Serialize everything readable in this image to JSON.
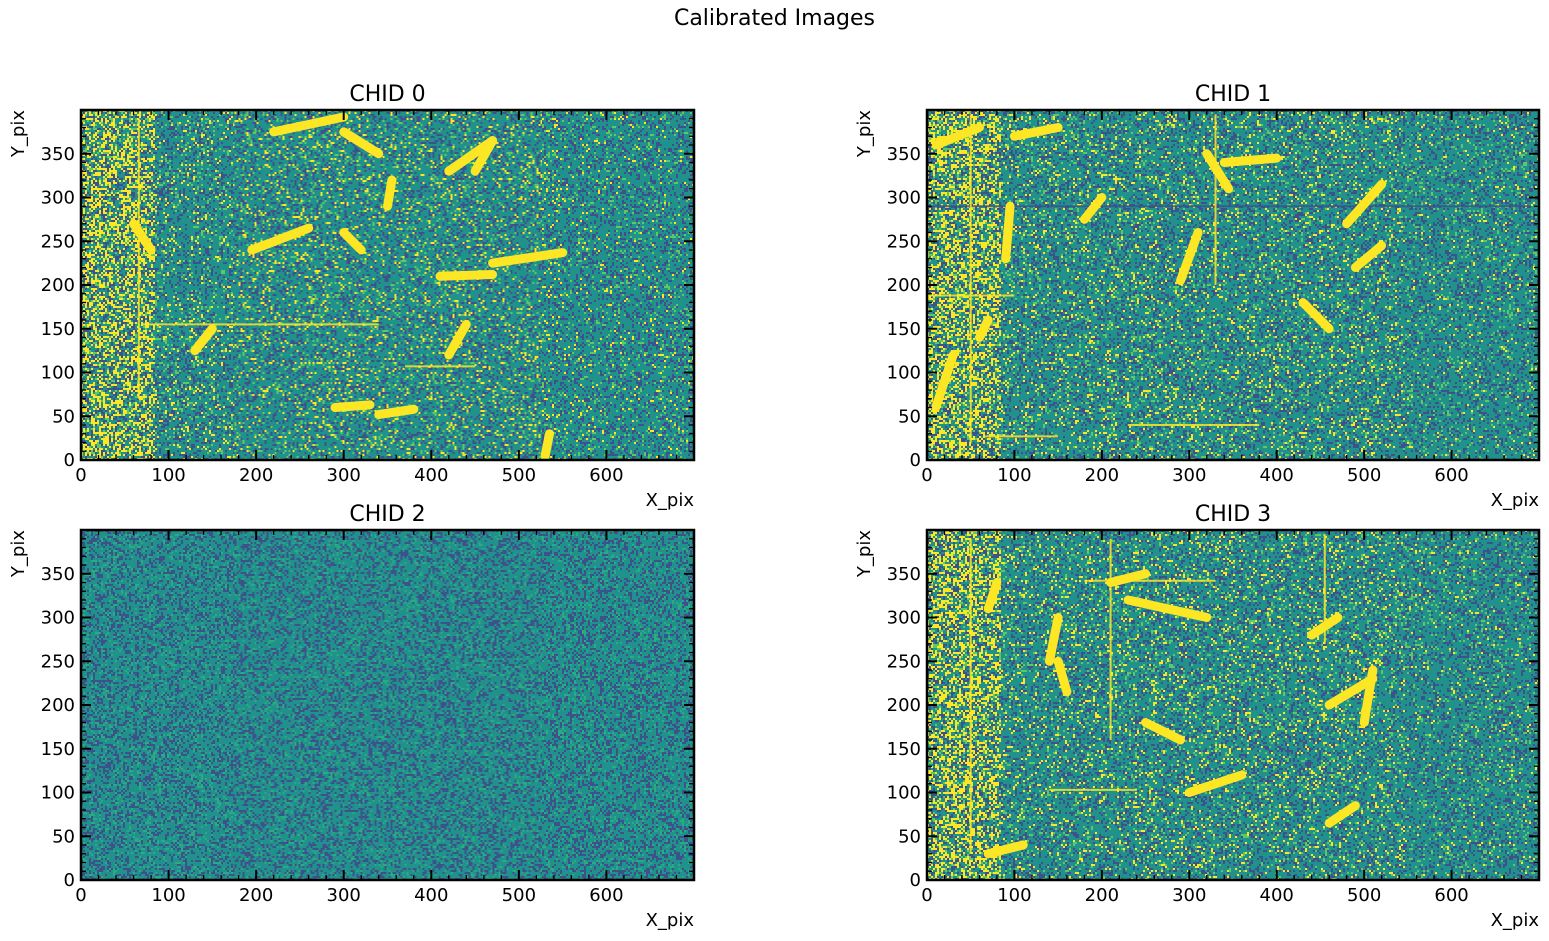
{
  "figure": {
    "suptitle": "Calibrated Images",
    "colormap": "viridis",
    "colormap_colors": [
      "#440154",
      "#3b528b",
      "#21918c",
      "#27ad81",
      "#5ec962",
      "#aadc32",
      "#fde725"
    ]
  },
  "chart_data": [
    {
      "type": "heatmap",
      "title": "CHID 0",
      "xlabel": "X_pix",
      "ylabel": "Y_pix",
      "xlim": [
        0,
        700
      ],
      "ylim": [
        0,
        400
      ],
      "xticks": [
        "0",
        "100",
        "200",
        "300",
        "400",
        "500",
        "600"
      ],
      "yticks": [
        "0",
        "50",
        "100",
        "150",
        "200",
        "250",
        "300",
        "350"
      ],
      "activity": "high",
      "saturated_tracks": [
        {
          "x1": 220,
          "y1": 375,
          "x2": 300,
          "y2": 392
        },
        {
          "x1": 300,
          "y1": 375,
          "x2": 340,
          "y2": 350
        },
        {
          "x1": 420,
          "y1": 330,
          "x2": 470,
          "y2": 365
        },
        {
          "x1": 470,
          "y1": 365,
          "x2": 450,
          "y2": 330
        },
        {
          "x1": 350,
          "y1": 290,
          "x2": 355,
          "y2": 320
        },
        {
          "x1": 195,
          "y1": 240,
          "x2": 260,
          "y2": 265
        },
        {
          "x1": 420,
          "y1": 120,
          "x2": 440,
          "y2": 155
        },
        {
          "x1": 130,
          "y1": 125,
          "x2": 150,
          "y2": 150
        },
        {
          "x1": 470,
          "y1": 225,
          "x2": 550,
          "y2": 237
        },
        {
          "x1": 60,
          "y1": 270,
          "x2": 80,
          "y2": 240
        },
        {
          "x1": 530,
          "y1": 5,
          "x2": 535,
          "y2": 30
        },
        {
          "x1": 340,
          "y1": 52,
          "x2": 380,
          "y2": 58
        },
        {
          "x1": 290,
          "y1": 60,
          "x2": 330,
          "y2": 63
        },
        {
          "x1": 300,
          "y1": 260,
          "x2": 320,
          "y2": 240
        },
        {
          "x1": 410,
          "y1": 210,
          "x2": 470,
          "y2": 212
        }
      ],
      "line_features": [
        {
          "x1": 70,
          "y1": 155,
          "x2": 340,
          "y2": 155
        },
        {
          "x1": 66,
          "y1": 70,
          "x2": 66,
          "y2": 390
        },
        {
          "x1": 370,
          "y1": 107,
          "x2": 450,
          "y2": 107
        }
      ]
    },
    {
      "type": "heatmap",
      "title": "CHID 1",
      "xlabel": "X_pix",
      "ylabel": "Y_pix",
      "xlim": [
        0,
        700
      ],
      "ylim": [
        0,
        400
      ],
      "xticks": [
        "0",
        "100",
        "200",
        "300",
        "400",
        "500",
        "600"
      ],
      "yticks": [
        "0",
        "50",
        "100",
        "150",
        "200",
        "250",
        "300",
        "350"
      ],
      "activity": "high",
      "saturated_tracks": [
        {
          "x1": 90,
          "y1": 230,
          "x2": 95,
          "y2": 290
        },
        {
          "x1": 10,
          "y1": 360,
          "x2": 60,
          "y2": 380
        },
        {
          "x1": 180,
          "y1": 275,
          "x2": 200,
          "y2": 300
        },
        {
          "x1": 290,
          "y1": 205,
          "x2": 310,
          "y2": 260
        },
        {
          "x1": 430,
          "y1": 180,
          "x2": 460,
          "y2": 150
        },
        {
          "x1": 480,
          "y1": 270,
          "x2": 520,
          "y2": 315
        },
        {
          "x1": 490,
          "y1": 220,
          "x2": 520,
          "y2": 245
        },
        {
          "x1": 340,
          "y1": 340,
          "x2": 400,
          "y2": 345
        },
        {
          "x1": 320,
          "y1": 350,
          "x2": 345,
          "y2": 310
        },
        {
          "x1": 10,
          "y1": 60,
          "x2": 30,
          "y2": 120
        },
        {
          "x1": 100,
          "y1": 370,
          "x2": 150,
          "y2": 380
        },
        {
          "x1": 60,
          "y1": 140,
          "x2": 70,
          "y2": 160
        }
      ],
      "line_features": [
        {
          "x1": 0,
          "y1": 290,
          "x2": 690,
          "y2": 290
        },
        {
          "x1": 330,
          "y1": 200,
          "x2": 330,
          "y2": 395
        },
        {
          "x1": 0,
          "y1": 188,
          "x2": 100,
          "y2": 188
        },
        {
          "x1": 65,
          "y1": 27,
          "x2": 150,
          "y2": 27
        },
        {
          "x1": 230,
          "y1": 40,
          "x2": 380,
          "y2": 40
        },
        {
          "x1": 50,
          "y1": 20,
          "x2": 50,
          "y2": 395
        }
      ]
    },
    {
      "type": "heatmap",
      "title": "CHID 2",
      "xlabel": "X_pix",
      "ylabel": "Y_pix",
      "xlim": [
        0,
        700
      ],
      "ylim": [
        0,
        400
      ],
      "xticks": [
        "0",
        "100",
        "200",
        "300",
        "400",
        "500",
        "600"
      ],
      "yticks": [
        "0",
        "50",
        "100",
        "150",
        "200",
        "250",
        "300",
        "350"
      ],
      "activity": "low",
      "saturated_tracks": [],
      "line_features": []
    },
    {
      "type": "heatmap",
      "title": "CHID 3",
      "xlabel": "X_pix",
      "ylabel": "Y_pix",
      "xlim": [
        0,
        700
      ],
      "ylim": [
        0,
        400
      ],
      "xticks": [
        "0",
        "100",
        "200",
        "300",
        "400",
        "500",
        "600"
      ],
      "yticks": [
        "0",
        "50",
        "100",
        "150",
        "200",
        "250",
        "300",
        "350"
      ],
      "activity": "high",
      "saturated_tracks": [
        {
          "x1": 140,
          "y1": 250,
          "x2": 150,
          "y2": 300
        },
        {
          "x1": 150,
          "y1": 250,
          "x2": 160,
          "y2": 215
        },
        {
          "x1": 440,
          "y1": 280,
          "x2": 470,
          "y2": 300
        },
        {
          "x1": 460,
          "y1": 200,
          "x2": 510,
          "y2": 230
        },
        {
          "x1": 500,
          "y1": 180,
          "x2": 510,
          "y2": 240
        },
        {
          "x1": 300,
          "y1": 100,
          "x2": 360,
          "y2": 120
        },
        {
          "x1": 250,
          "y1": 180,
          "x2": 290,
          "y2": 160
        },
        {
          "x1": 230,
          "y1": 320,
          "x2": 320,
          "y2": 300
        },
        {
          "x1": 460,
          "y1": 65,
          "x2": 490,
          "y2": 85
        },
        {
          "x1": 70,
          "y1": 30,
          "x2": 110,
          "y2": 40
        },
        {
          "x1": 210,
          "y1": 340,
          "x2": 250,
          "y2": 350
        },
        {
          "x1": 70,
          "y1": 310,
          "x2": 80,
          "y2": 340
        }
      ],
      "line_features": [
        {
          "x1": 210,
          "y1": 160,
          "x2": 210,
          "y2": 390
        },
        {
          "x1": 180,
          "y1": 342,
          "x2": 330,
          "y2": 342
        },
        {
          "x1": 50,
          "y1": 30,
          "x2": 50,
          "y2": 390
        },
        {
          "x1": 455,
          "y1": 270,
          "x2": 455,
          "y2": 395
        },
        {
          "x1": 140,
          "y1": 103,
          "x2": 240,
          "y2": 103
        }
      ]
    }
  ]
}
